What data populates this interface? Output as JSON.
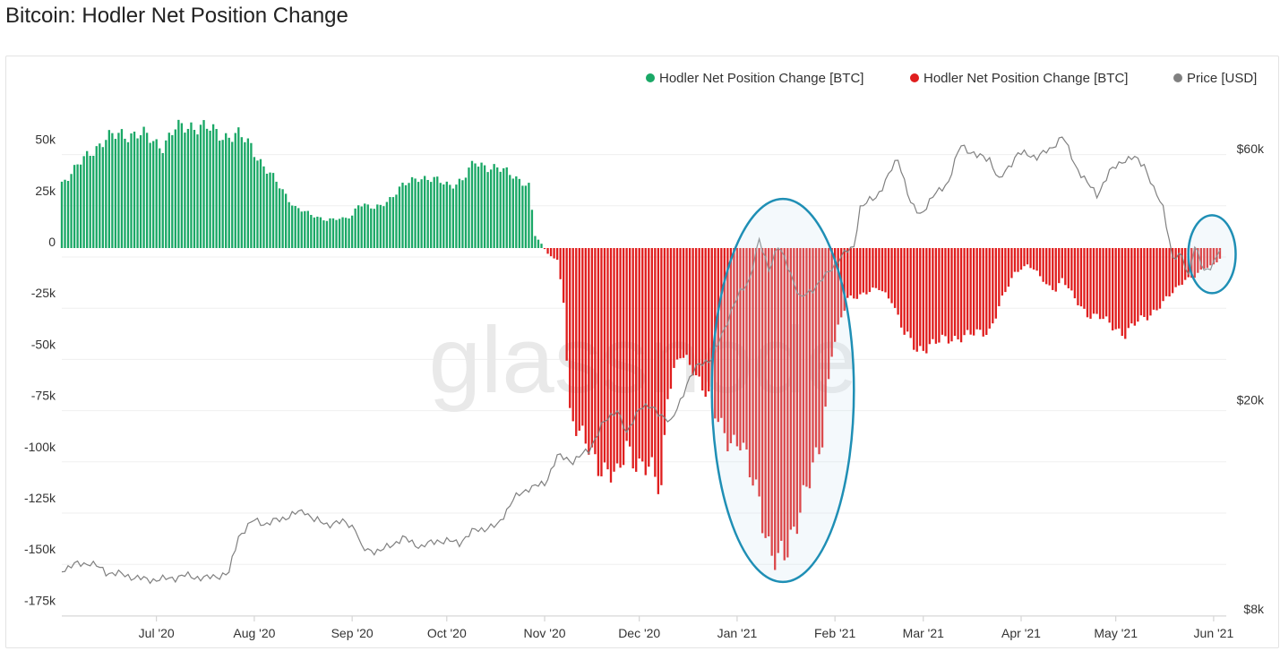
{
  "title": "Bitcoin: Hodler Net Position Change",
  "watermark": "glassnode",
  "legend": [
    {
      "label": "Hodler Net Position Change [BTC]",
      "color": "#1aa866"
    },
    {
      "label": "Hodler Net Position Change [BTC]",
      "color": "#e01e1e"
    },
    {
      "label": "Price [USD]",
      "color": "#808080"
    }
  ],
  "chart_data": {
    "type": "bar",
    "title": "Bitcoin: Hodler Net Position Change",
    "y_left": {
      "ticks": [
        "50k",
        "25k",
        "0",
        "-25k",
        "-50k",
        "-75k",
        "-100k",
        "-125k",
        "-150k",
        "-175k"
      ],
      "range": [
        -175000,
        60000
      ]
    },
    "y_right": {
      "ticks": [
        "$60k",
        "$20k",
        "$8k"
      ],
      "scale": "log",
      "range": [
        7800,
        75000
      ]
    },
    "x_ticks": [
      "Jul '20",
      "Aug '20",
      "Sep '20",
      "Oct '20",
      "Nov '20",
      "Dec '20",
      "Jan '21",
      "Feb '21",
      "Mar '21",
      "Apr '21",
      "May '21",
      "Jun '21"
    ],
    "x_range": [
      "2020-06-01",
      "2021-06-05"
    ],
    "grid": true,
    "legend_position": "top-right",
    "series": [
      {
        "name": "Hodler Net Position Change [BTC]",
        "kind": "bars",
        "positive_color": "#1aa866",
        "negative_color": "#e01e1e",
        "points": [
          [
            "2020-06-01",
            32000
          ],
          [
            "2020-06-05",
            38000
          ],
          [
            "2020-06-10",
            47000
          ],
          [
            "2020-06-15",
            53000
          ],
          [
            "2020-06-20",
            56000
          ],
          [
            "2020-06-27",
            55000
          ],
          [
            "2020-07-03",
            50000
          ],
          [
            "2020-07-07",
            58000
          ],
          [
            "2020-07-12",
            60000
          ],
          [
            "2020-07-16",
            59000
          ],
          [
            "2020-07-22",
            55000
          ],
          [
            "2020-07-27",
            55000
          ],
          [
            "2020-07-31",
            50000
          ],
          [
            "2020-08-04",
            40000
          ],
          [
            "2020-08-09",
            30000
          ],
          [
            "2020-08-14",
            20000
          ],
          [
            "2020-08-19",
            16000
          ],
          [
            "2020-08-24",
            14000
          ],
          [
            "2020-08-29",
            14000
          ],
          [
            "2020-09-01",
            16000
          ],
          [
            "2020-09-03",
            22000
          ],
          [
            "2020-09-08",
            19000
          ],
          [
            "2020-09-12",
            23000
          ],
          [
            "2020-09-17",
            30000
          ],
          [
            "2020-09-22",
            35000
          ],
          [
            "2020-09-27",
            33000
          ],
          [
            "2020-10-02",
            31000
          ],
          [
            "2020-10-06",
            33000
          ],
          [
            "2020-10-10",
            42000
          ],
          [
            "2020-10-16",
            39000
          ],
          [
            "2020-10-22",
            36000
          ],
          [
            "2020-10-27",
            30000
          ],
          [
            "2020-10-29",
            6000
          ],
          [
            "2020-10-31",
            2000
          ],
          [
            "2020-11-02",
            -3000
          ],
          [
            "2020-11-05",
            -6000
          ],
          [
            "2020-11-07",
            -25000
          ],
          [
            "2020-11-09",
            -80000
          ],
          [
            "2020-11-12",
            -92000
          ],
          [
            "2020-11-16",
            -100000
          ],
          [
            "2020-11-20",
            -108000
          ],
          [
            "2020-11-24",
            -114000
          ],
          [
            "2020-11-27",
            -95000
          ],
          [
            "2020-12-01",
            -107000
          ],
          [
            "2020-12-05",
            -110000
          ],
          [
            "2020-12-08",
            -115000
          ],
          [
            "2020-12-10",
            -70000
          ],
          [
            "2020-12-14",
            -53000
          ],
          [
            "2020-12-18",
            -58000
          ],
          [
            "2020-12-22",
            -70000
          ],
          [
            "2020-12-25",
            -82000
          ],
          [
            "2020-12-29",
            -92000
          ],
          [
            "2021-01-02",
            -96000
          ],
          [
            "2021-01-05",
            -110000
          ],
          [
            "2021-01-08",
            -120000
          ],
          [
            "2021-01-11",
            -147000
          ],
          [
            "2021-01-14",
            -157000
          ],
          [
            "2021-01-17",
            -145000
          ],
          [
            "2021-01-20",
            -130000
          ],
          [
            "2021-01-24",
            -115000
          ],
          [
            "2021-01-28",
            -92000
          ],
          [
            "2021-01-31",
            -50000
          ],
          [
            "2021-02-03",
            -35000
          ],
          [
            "2021-02-05",
            -25000
          ],
          [
            "2021-02-10",
            -22000
          ],
          [
            "2021-02-15",
            -20000
          ],
          [
            "2021-02-19",
            -25000
          ],
          [
            "2021-02-23",
            -42000
          ],
          [
            "2021-02-27",
            -50000
          ],
          [
            "2021-03-03",
            -47000
          ],
          [
            "2021-03-08",
            -45000
          ],
          [
            "2021-03-13",
            -43000
          ],
          [
            "2021-03-18",
            -42000
          ],
          [
            "2021-03-22",
            -40000
          ],
          [
            "2021-03-26",
            -25000
          ],
          [
            "2021-03-30",
            -12000
          ],
          [
            "2021-04-03",
            -8000
          ],
          [
            "2021-04-06",
            -12000
          ],
          [
            "2021-04-09",
            -18000
          ],
          [
            "2021-04-12",
            -20000
          ],
          [
            "2021-04-14",
            -15000
          ],
          [
            "2021-04-18",
            -25000
          ],
          [
            "2021-04-22",
            -32000
          ],
          [
            "2021-04-26",
            -34000
          ],
          [
            "2021-04-30",
            -38000
          ],
          [
            "2021-05-04",
            -42000
          ],
          [
            "2021-05-08",
            -36000
          ],
          [
            "2021-05-12",
            -32000
          ],
          [
            "2021-05-16",
            -27000
          ],
          [
            "2021-05-20",
            -20000
          ],
          [
            "2021-05-23",
            -15000
          ],
          [
            "2021-05-26",
            -14000
          ],
          [
            "2021-05-29",
            -10000
          ],
          [
            "2021-06-01",
            -8000
          ],
          [
            "2021-06-03",
            -5000
          ]
        ]
      },
      {
        "name": "Price [USD]",
        "kind": "line",
        "color": "#808080",
        "points": [
          [
            "2020-06-01",
            9500
          ],
          [
            "2020-06-05",
            9700
          ],
          [
            "2020-06-10",
            9800
          ],
          [
            "2020-06-15",
            9400
          ],
          [
            "2020-06-20",
            9300
          ],
          [
            "2020-06-27",
            9100
          ],
          [
            "2020-07-03",
            9100
          ],
          [
            "2020-07-10",
            9250
          ],
          [
            "2020-07-17",
            9150
          ],
          [
            "2020-07-24",
            9350
          ],
          [
            "2020-07-27",
            11000
          ],
          [
            "2020-08-01",
            11800
          ],
          [
            "2020-08-05",
            11600
          ],
          [
            "2020-08-10",
            11900
          ],
          [
            "2020-08-17",
            12300
          ],
          [
            "2020-08-20",
            11800
          ],
          [
            "2020-08-24",
            11600
          ],
          [
            "2020-08-30",
            11700
          ],
          [
            "2020-09-02",
            11400
          ],
          [
            "2020-09-04",
            10400
          ],
          [
            "2020-09-10",
            10300
          ],
          [
            "2020-09-17",
            10900
          ],
          [
            "2020-09-23",
            10500
          ],
          [
            "2020-09-28",
            10800
          ],
          [
            "2020-10-05",
            10700
          ],
          [
            "2020-10-10",
            11300
          ],
          [
            "2020-10-17",
            11500
          ],
          [
            "2020-10-22",
            12900
          ],
          [
            "2020-10-27",
            13600
          ],
          [
            "2020-11-01",
            13800
          ],
          [
            "2020-11-05",
            15600
          ],
          [
            "2020-11-10",
            15300
          ],
          [
            "2020-11-15",
            16000
          ],
          [
            "2020-11-19",
            17800
          ],
          [
            "2020-11-24",
            19200
          ],
          [
            "2020-11-27",
            17100
          ],
          [
            "2020-12-01",
            19400
          ],
          [
            "2020-12-06",
            19200
          ],
          [
            "2020-12-11",
            18000
          ],
          [
            "2020-12-16",
            21300
          ],
          [
            "2020-12-20",
            23500
          ],
          [
            "2020-12-24",
            23800
          ],
          [
            "2020-12-27",
            26500
          ],
          [
            "2021-01-02",
            32000
          ],
          [
            "2021-01-05",
            34000
          ],
          [
            "2021-01-08",
            40000
          ],
          [
            "2021-01-11",
            35500
          ],
          [
            "2021-01-14",
            39000
          ],
          [
            "2021-01-17",
            36000
          ],
          [
            "2021-01-21",
            31000
          ],
          [
            "2021-01-25",
            32500
          ],
          [
            "2021-01-29",
            34300
          ],
          [
            "2021-02-03",
            37500
          ],
          [
            "2021-02-07",
            39000
          ],
          [
            "2021-02-09",
            46500
          ],
          [
            "2021-02-14",
            48500
          ],
          [
            "2021-02-17",
            52000
          ],
          [
            "2021-02-21",
            57500
          ],
          [
            "2021-02-25",
            47000
          ],
          [
            "2021-02-28",
            45000
          ],
          [
            "2021-03-04",
            48500
          ],
          [
            "2021-03-09",
            52000
          ],
          [
            "2021-03-13",
            61000
          ],
          [
            "2021-03-18",
            58000
          ],
          [
            "2021-03-22",
            57500
          ],
          [
            "2021-03-25",
            52000
          ],
          [
            "2021-03-31",
            58800
          ],
          [
            "2021-04-06",
            58000
          ],
          [
            "2021-04-10",
            59500
          ],
          [
            "2021-04-14",
            63500
          ],
          [
            "2021-04-18",
            56000
          ],
          [
            "2021-04-22",
            51500
          ],
          [
            "2021-04-25",
            49000
          ],
          [
            "2021-04-29",
            54000
          ],
          [
            "2021-05-03",
            57000
          ],
          [
            "2021-05-07",
            57500
          ],
          [
            "2021-05-10",
            56000
          ],
          [
            "2021-05-13",
            50000
          ],
          [
            "2021-05-16",
            46500
          ],
          [
            "2021-05-19",
            37000
          ],
          [
            "2021-05-22",
            37500
          ],
          [
            "2021-05-24",
            34500
          ],
          [
            "2021-05-26",
            39000
          ],
          [
            "2021-05-29",
            35000
          ],
          [
            "2021-06-01",
            36500
          ],
          [
            "2021-06-03",
            38500
          ]
        ]
      }
    ],
    "highlights": [
      {
        "shape": "ellipse",
        "color": "#1f8fb5",
        "x_range": [
          "2020-12-24",
          "2021-02-07"
        ],
        "y_range": [
          -163000,
          24000
        ]
      },
      {
        "shape": "ellipse",
        "color": "#1f8fb5",
        "x_range": [
          "2021-05-24",
          "2021-06-08"
        ],
        "y_range": [
          -22000,
          16000
        ]
      }
    ]
  }
}
